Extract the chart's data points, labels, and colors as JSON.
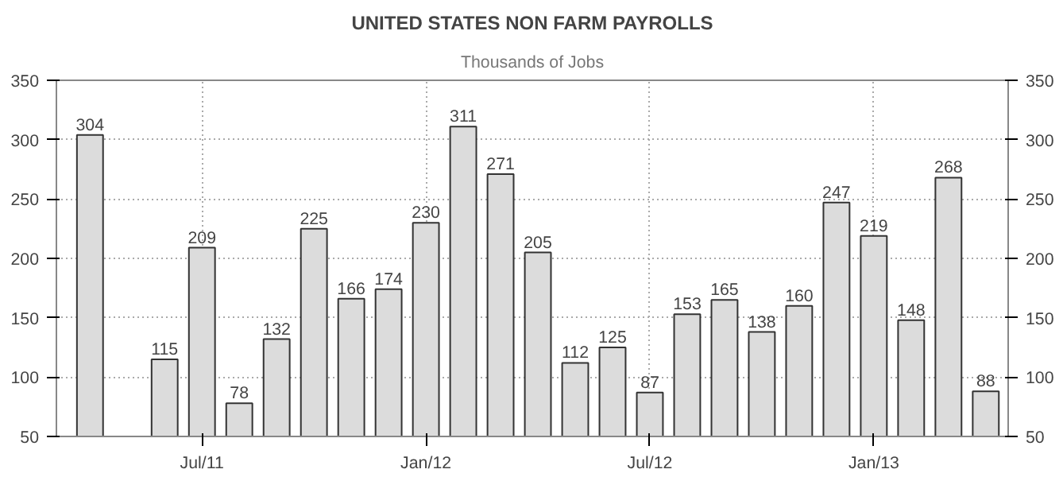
{
  "chart_data": {
    "type": "bar",
    "title": "UNITED STATES NON FARM PAYROLLS",
    "subtitle": "Thousands of Jobs",
    "categories": [
      null,
      null,
      null,
      "Jul/11",
      null,
      null,
      null,
      null,
      null,
      "Jan/12",
      null,
      null,
      null,
      null,
      null,
      "Jul/12",
      null,
      null,
      null,
      null,
      null,
      "Jan/13",
      null,
      null,
      null
    ],
    "values": [
      304,
      null,
      115,
      209,
      78,
      132,
      225,
      166,
      174,
      230,
      311,
      271,
      205,
      112,
      125,
      87,
      153,
      165,
      138,
      160,
      247,
      219,
      148,
      268,
      88
    ],
    "color": "#dcdcdc",
    "data_labels": true,
    "ylim": [
      50,
      350
    ],
    "yticks": [
      50,
      100,
      150,
      200,
      250,
      300,
      350
    ],
    "y2lim": [
      50,
      350
    ],
    "y2ticks": [
      50,
      100,
      150,
      200,
      250,
      300,
      350
    ],
    "grid": true
  }
}
